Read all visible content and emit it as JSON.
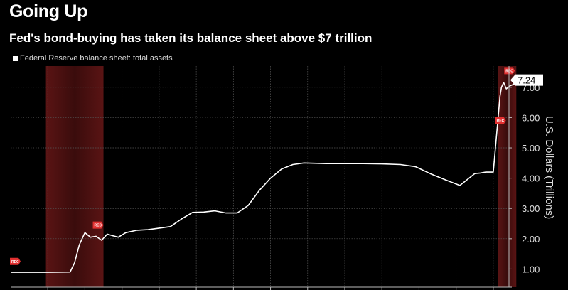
{
  "header": {
    "title": "Going Up",
    "subtitle": "Fed's bond-buying has taken its balance sheet above $7 trillion"
  },
  "legend": {
    "label": "Federal Reserve balance sheet: total assets"
  },
  "chart_data": {
    "type": "line",
    "title": "Going Up",
    "subtitle": "Fed's bond-buying has taken its balance sheet above $7 trillion",
    "ylabel": "U.S. Dollars (Trillions)",
    "xlabel": "",
    "ylim": [
      0.4,
      7.7
    ],
    "xlim": [
      2007.0,
      2020.5
    ],
    "grid": true,
    "legend_position": "top-left",
    "y_ticks": [
      {
        "value": 1,
        "label": "1.00"
      },
      {
        "value": 2,
        "label": "2.00"
      },
      {
        "value": 3,
        "label": "3.00"
      },
      {
        "value": 4,
        "label": "4.00"
      },
      {
        "value": 5,
        "label": "5.00"
      },
      {
        "value": 6,
        "label": "6.00"
      },
      {
        "value": 7,
        "label": "7.00"
      }
    ],
    "last_value_label": "7.24",
    "series": [
      {
        "name": "Federal Reserve balance sheet: total assets",
        "color": "#ffffff",
        "x": [
          2007.0,
          2007.5,
          2008.0,
          2008.6,
          2008.72,
          2008.85,
          2009.0,
          2009.15,
          2009.3,
          2009.45,
          2009.6,
          2009.75,
          2009.9,
          2010.1,
          2010.4,
          2010.7,
          2011.0,
          2011.3,
          2011.6,
          2011.9,
          2012.2,
          2012.5,
          2012.8,
          2013.1,
          2013.4,
          2013.7,
          2014.0,
          2014.3,
          2014.6,
          2014.9,
          2015.5,
          2016.0,
          2016.5,
          2017.0,
          2017.5,
          2017.9,
          2018.3,
          2018.7,
          2019.1,
          2019.5,
          2019.65,
          2019.8,
          2020.0,
          2020.13,
          2020.18,
          2020.22,
          2020.28,
          2020.35,
          2020.45,
          2020.55,
          2020.62
        ],
        "values": [
          0.89,
          0.89,
          0.89,
          0.9,
          1.2,
          1.8,
          2.2,
          2.05,
          2.08,
          1.95,
          2.15,
          2.1,
          2.05,
          2.2,
          2.28,
          2.3,
          2.35,
          2.4,
          2.65,
          2.87,
          2.88,
          2.92,
          2.85,
          2.85,
          3.1,
          3.6,
          4.0,
          4.3,
          4.45,
          4.5,
          4.48,
          4.48,
          4.48,
          4.47,
          4.45,
          4.38,
          4.15,
          3.95,
          3.76,
          4.15,
          4.17,
          4.2,
          4.2,
          6.0,
          6.7,
          7.0,
          7.16,
          6.95,
          7.05,
          7.1,
          7.24
        ]
      }
    ],
    "recessions": [
      {
        "start": 2007.95,
        "end": 2009.5,
        "start_label": "REC",
        "end_label": "REC"
      },
      {
        "start": 2020.13,
        "end": 2020.62,
        "start_label": "REC",
        "end_label": "REC"
      }
    ]
  }
}
